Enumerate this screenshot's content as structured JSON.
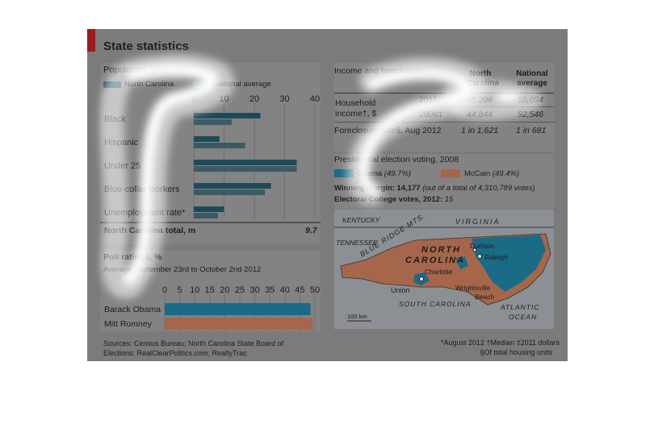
{
  "page": {
    "title": "State statistics",
    "sources": "Sources: Census Bureau; North Carolina State Board of Elections; RealClearPolitics.com; RealtyTrac",
    "footnote1": "*August 2012  †Median  ‡2011 dollars",
    "footnote2": "§Of total housing units"
  },
  "population": {
    "title": "Population, 2011, %",
    "legend_nc": "North Carolina",
    "legend_nat": "National average",
    "total_label": "North Carolina total, m",
    "total_value": "9.7"
  },
  "polls": {
    "title": "Poll ratings, %",
    "subtitle": "Average September 23rd to October 2nd 2012"
  },
  "income": {
    "title": "Income and foreclosure",
    "col_nc": "North Carolina",
    "col_nat": "National average",
    "row1_label_a": "Household",
    "row1_label_b": "income†, $",
    "r1_year": "2011",
    "r1_nc": "45,206",
    "r1_nat": "50,054",
    "r2_year": "2008‡",
    "r2_nc": "44,844",
    "r2_nat": "52,546",
    "row3_label": "Foreclosure rate§, Aug 2012",
    "r3_nc": "1 in 1,621",
    "r3_nat": "1 in 681"
  },
  "election": {
    "title": "Presidential election voting, 2008",
    "obama": "Obama",
    "obama_pct": "(49.7%)",
    "mccain": "McCain",
    "mccain_pct": "(49.4%)",
    "margin_label": "Winning margin:",
    "margin_value": "14,177",
    "margin_note": "(out of a total of 4,310,789 votes)",
    "ec_label": "Electoral College votes, 2012:",
    "ec_value": "15"
  },
  "map": {
    "kentucky": "KENTUCKY",
    "virginia": "VIRGINIA",
    "tennessee": "TENNESSEE",
    "blue_ridge": "BLUE RIDGE MTS.",
    "nc_line1": "NORTH",
    "nc_line2": "CAROLINA",
    "durham": "Durham",
    "raleigh": "Raleigh",
    "charlotte": "Charlotte",
    "union": "Union",
    "wrightsville_1": "Wrightsville",
    "wrightsville_2": "Beach",
    "south_carolina": "SOUTH CAROLINA",
    "atlantic_1": "ATLANTIC",
    "atlantic_2": "OCEAN",
    "scale": "100 km"
  },
  "colors": {
    "nc": "#1e4a58",
    "national": "#3c5a66",
    "obama": "#1a6b86",
    "mccain": "#a5664c",
    "accent": "#9b1b1e"
  },
  "chart_data": [
    {
      "type": "bar",
      "orientation": "horizontal",
      "title": "Population, 2011, %",
      "categories": [
        "Black",
        "Hispanic",
        "Under 25",
        "Blue-collar workers",
        "Unemployment rate*"
      ],
      "series": [
        {
          "name": "North Carolina",
          "values": [
            22,
            8.5,
            34,
            25.5,
            10
          ]
        },
        {
          "name": "National average",
          "values": [
            12.5,
            17,
            34,
            23.5,
            8
          ]
        }
      ],
      "xlim": [
        0,
        40
      ],
      "xticks": [
        "0",
        "10",
        "20",
        "30",
        "40"
      ],
      "legend": "top-left"
    },
    {
      "type": "bar",
      "orientation": "horizontal",
      "title": "Poll ratings, %",
      "categories": [
        "Barack Obama",
        "Mitt Romney"
      ],
      "values": [
        48.6,
        49.3
      ],
      "xlim": [
        0,
        50
      ],
      "xticks": [
        "0",
        "5",
        "10",
        "15",
        "20",
        "25",
        "30",
        "35",
        "40",
        "45",
        "50"
      ]
    }
  ]
}
